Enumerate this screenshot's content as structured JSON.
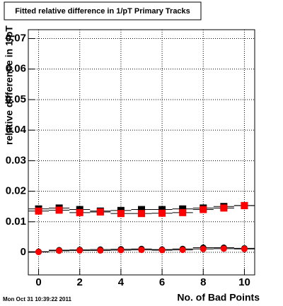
{
  "chart_data": {
    "type": "scatter",
    "title": "Fitted relative difference in 1/pT Primary Tracks",
    "x_label": "No. of Bad Points",
    "y_label": "relative difference in 1/pT",
    "footer": "Mon Oct 31 10:39:22 2011",
    "x": [
      0,
      1,
      2,
      3,
      4,
      5,
      6,
      7,
      8,
      9,
      10
    ],
    "series": [
      {
        "color": "#000000",
        "marker": "square",
        "values": [
          0.0142,
          0.0145,
          0.014,
          0.0135,
          0.0137,
          0.014,
          0.014,
          0.0142,
          0.0145,
          0.015,
          0.0153
        ]
      },
      {
        "color": "#ff0000",
        "marker": "square",
        "values": [
          0.0135,
          0.0138,
          0.013,
          0.0132,
          0.0127,
          0.0127,
          0.0128,
          0.013,
          0.014,
          0.0145,
          0.0153
        ]
      },
      {
        "color": "#000000",
        "marker": "circle",
        "values": [
          0.0002,
          0.0007,
          0.0008,
          0.0009,
          0.001,
          0.0011,
          0.0009,
          0.0011,
          0.0015,
          0.0015,
          0.0013
        ]
      },
      {
        "color": "#ff0000",
        "marker": "circle",
        "values": [
          0.0001,
          0.0005,
          0.0006,
          0.0006,
          0.0007,
          0.0008,
          0.0007,
          0.0008,
          0.0011,
          0.0012,
          0.0011
        ]
      }
    ],
    "xlim": [
      -0.5,
      10.5
    ],
    "xticks": [
      0,
      2,
      4,
      6,
      8,
      10
    ],
    "ylim": [
      -0.0074,
      0.0729
    ],
    "yticks": [
      0,
      0.01,
      0.02,
      0.03,
      0.04,
      0.05,
      0.06,
      0.07
    ],
    "grid": true
  }
}
